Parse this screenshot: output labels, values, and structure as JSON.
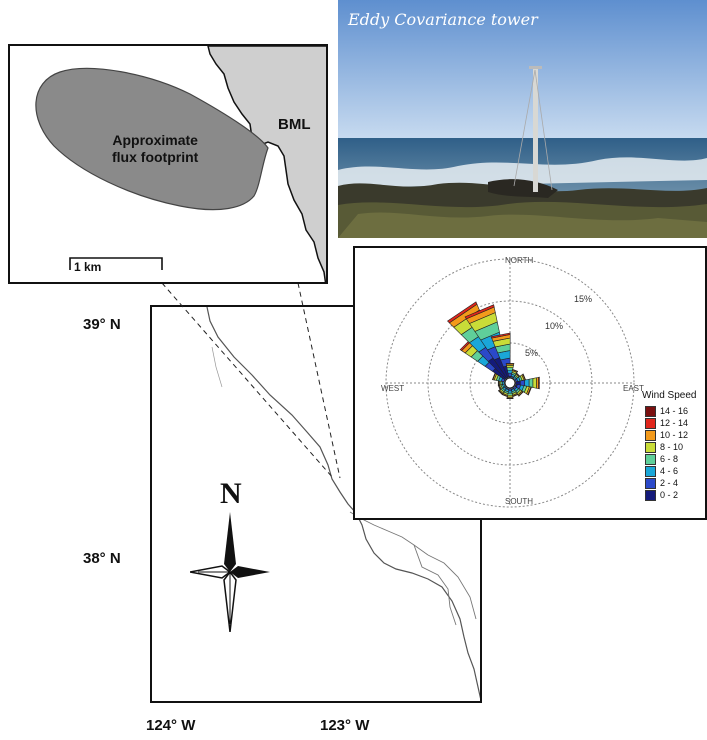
{
  "main_map": {
    "lat_labels": [
      "39° N",
      "38° N"
    ],
    "lon_labels": [
      "124° W",
      "123° W"
    ],
    "compass_letter": "N"
  },
  "inset_map": {
    "footprint_label_line1": "Approximate",
    "footprint_label_line2": "flux footprint",
    "site_label": "BML",
    "scale_label": "1 km",
    "land_color": "#cfcfcf",
    "footprint_color": "#8a8a8a"
  },
  "photo": {
    "title": "Eddy Covariance tower"
  },
  "wind_rose": {
    "directions": {
      "north": "NORTH",
      "south": "SOUTH",
      "east": "EAST",
      "west": "WEST"
    },
    "ring_labels": [
      "5%",
      "10%",
      "15%"
    ],
    "legend_title": "Wind Speed",
    "legend": [
      {
        "label": "14 - 16",
        "color": "#7a1010"
      },
      {
        "label": "12 - 14",
        "color": "#e0261c"
      },
      {
        "label": "10 - 12",
        "color": "#f39a1b"
      },
      {
        "label": "8 - 10",
        "color": "#c9dc38"
      },
      {
        "label": "6 - 8",
        "color": "#5fcf9a"
      },
      {
        "label": "4 - 6",
        "color": "#1aa7d8"
      },
      {
        "label": "2 - 4",
        "color": "#2b49c9"
      },
      {
        "label": "0 - 2",
        "color": "#141a7a"
      }
    ]
  }
}
